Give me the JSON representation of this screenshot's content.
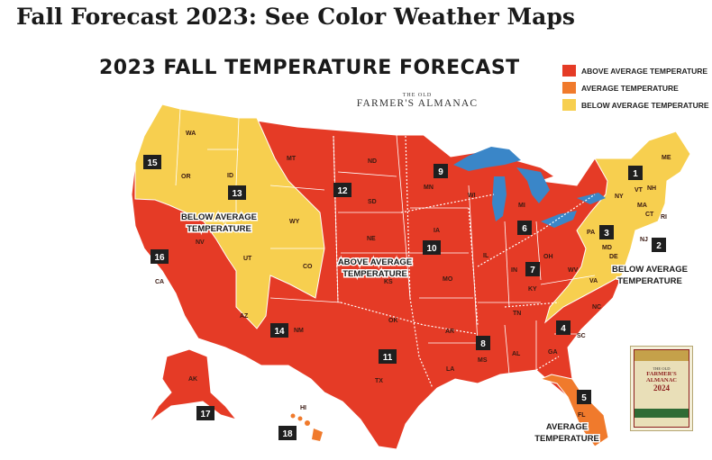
{
  "page": {
    "heading": "Fall Forecast 2023: See Color Weather Maps"
  },
  "map": {
    "title": "2023 FALL TEMPERATURE FORECAST",
    "brand_line1": "THE OLD",
    "brand_line2": "FARMER'S ALMANAC",
    "legend": [
      {
        "label": "ABOVE AVERAGE TEMPERATURE",
        "color": "#e53b26"
      },
      {
        "label": "AVERAGE TEMPERATURE",
        "color": "#f07a2c"
      },
      {
        "label": "BELOW AVERAGE TEMPERATURE",
        "color": "#f7cf4f"
      }
    ],
    "callouts": {
      "below_west_1": "BELOW AVERAGE",
      "below_west_2": "TEMPERATURE",
      "above_1": "ABOVE AVERAGE",
      "above_2": "TEMPERATURE",
      "below_east_1": "BELOW AVERAGE",
      "below_east_2": "TEMPERATURE",
      "average_1": "AVERAGE",
      "average_2": "TEMPERATURE"
    },
    "states": [
      "WA",
      "OR",
      "ID",
      "MT",
      "WY",
      "NV",
      "UT",
      "CO",
      "CA",
      "AZ",
      "NM",
      "ND",
      "SD",
      "NE",
      "KS",
      "OK",
      "TX",
      "MN",
      "IA",
      "MO",
      "AR",
      "LA",
      "WI",
      "IL",
      "MI",
      "IN",
      "OH",
      "KY",
      "TN",
      "MS",
      "AL",
      "GA",
      "FL",
      "SC",
      "NC",
      "VA",
      "WV",
      "PA",
      "NY",
      "VT",
      "NH",
      "ME",
      "MA",
      "CT",
      "RI",
      "NJ",
      "DE",
      "MD",
      "AK",
      "HI"
    ],
    "regions": [
      "1",
      "2",
      "3",
      "4",
      "5",
      "6",
      "7",
      "8",
      "9",
      "10",
      "11",
      "12",
      "13",
      "14",
      "15",
      "16",
      "17",
      "18"
    ],
    "book": {
      "small": "THE OLD",
      "title": "FARMER'S ALMANAC",
      "year": "2024"
    }
  }
}
